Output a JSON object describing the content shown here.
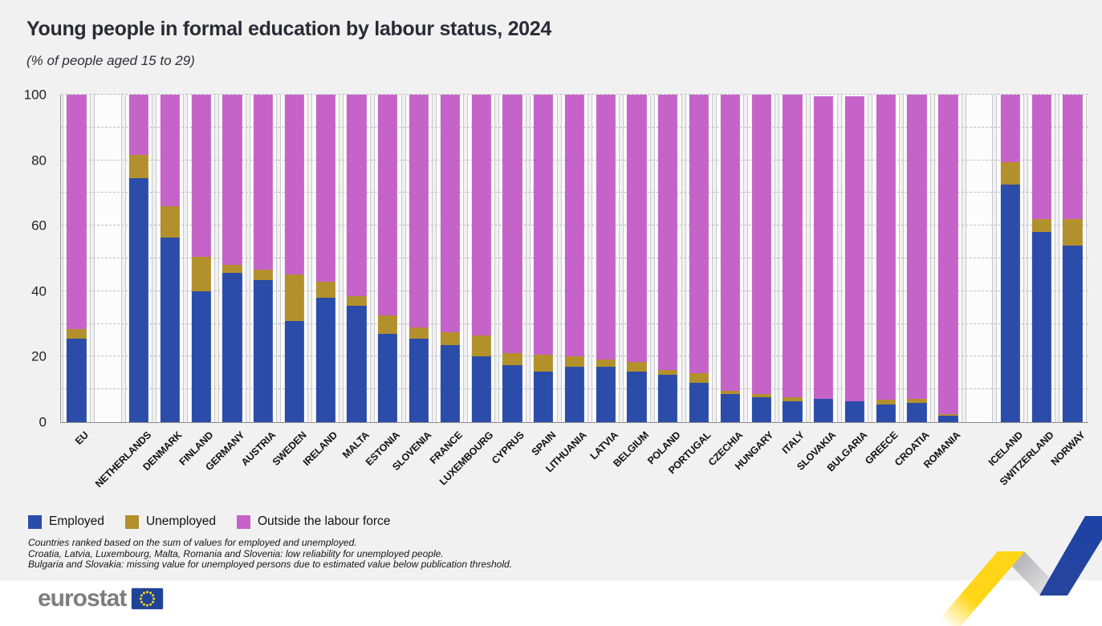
{
  "chart_data": {
    "type": "bar",
    "variant": "stacked-100",
    "title": "Young people in formal education by labour status, 2024",
    "subtitle": "(% of people aged 15 to 29)",
    "ylabel": "",
    "xlabel": "",
    "ylim": [
      0,
      100
    ],
    "yticks": [
      0,
      20,
      40,
      60,
      80,
      100
    ],
    "grid": "horizontal dashed every 10",
    "legend_position": "bottom-left",
    "series_names": [
      "Employed",
      "Unemployed",
      "Outside the labour force"
    ],
    "colors": {
      "employed": "#2b4ca8",
      "unemployed": "#b2902c",
      "outside": "#c563c9"
    },
    "bars": [
      {
        "label": "EU",
        "employed": 25.5,
        "unemployed": 3.0,
        "outside": 71.5
      },
      {
        "spacer": true
      },
      {
        "label": "NETHERLANDS",
        "employed": 74.5,
        "unemployed": 7.0,
        "outside": 18.5
      },
      {
        "label": "DENMARK",
        "employed": 56.5,
        "unemployed": 9.5,
        "outside": 34.0
      },
      {
        "label": "FINLAND",
        "employed": 40.0,
        "unemployed": 10.5,
        "outside": 49.5
      },
      {
        "label": "GERMANY",
        "employed": 45.5,
        "unemployed": 2.5,
        "outside": 52.0
      },
      {
        "label": "AUSTRIA",
        "employed": 43.5,
        "unemployed": 3.0,
        "outside": 53.5
      },
      {
        "label": "SWEDEN",
        "employed": 31.0,
        "unemployed": 14.0,
        "outside": 55.0
      },
      {
        "label": "IRELAND",
        "employed": 38.0,
        "unemployed": 5.0,
        "outside": 57.0
      },
      {
        "label": "MALTA",
        "employed": 35.5,
        "unemployed": 3.0,
        "outside": 61.5
      },
      {
        "label": "ESTONIA",
        "employed": 27.0,
        "unemployed": 5.5,
        "outside": 67.5
      },
      {
        "label": "SLOVENIA",
        "employed": 25.5,
        "unemployed": 3.5,
        "outside": 71.0
      },
      {
        "label": "FRANCE",
        "employed": 23.5,
        "unemployed": 4.0,
        "outside": 72.5
      },
      {
        "label": "LUXEMBOURG",
        "employed": 20.0,
        "unemployed": 6.5,
        "outside": 73.5
      },
      {
        "label": "CYPRUS",
        "employed": 17.5,
        "unemployed": 3.5,
        "outside": 79.0
      },
      {
        "label": "SPAIN",
        "employed": 15.5,
        "unemployed": 5.0,
        "outside": 79.5
      },
      {
        "label": "LITHUANIA",
        "employed": 17.0,
        "unemployed": 3.0,
        "outside": 80.0
      },
      {
        "label": "LATVIA",
        "employed": 17.0,
        "unemployed": 2.0,
        "outside": 81.0
      },
      {
        "label": "BELGIUM",
        "employed": 15.5,
        "unemployed": 3.0,
        "outside": 81.5
      },
      {
        "label": "POLAND",
        "employed": 14.5,
        "unemployed": 1.5,
        "outside": 84.0
      },
      {
        "label": "PORTUGAL",
        "employed": 12.0,
        "unemployed": 3.0,
        "outside": 85.0
      },
      {
        "label": "CZECHIA",
        "employed": 8.5,
        "unemployed": 1.0,
        "outside": 90.5
      },
      {
        "label": "HUNGARY",
        "employed": 7.5,
        "unemployed": 1.0,
        "outside": 91.5
      },
      {
        "label": "ITALY",
        "employed": 6.5,
        "unemployed": 1.0,
        "outside": 92.5
      },
      {
        "label": "SLOVAKIA",
        "employed": 7.0,
        "unemployed": null,
        "outside": 92.5
      },
      {
        "label": "BULGARIA",
        "employed": 6.5,
        "unemployed": null,
        "outside": 93.0
      },
      {
        "label": "GREECE",
        "employed": 5.5,
        "unemployed": 1.5,
        "outside": 93.0
      },
      {
        "label": "CROATIA",
        "employed": 6.0,
        "unemployed": 1.0,
        "outside": 93.0
      },
      {
        "label": "ROMANIA",
        "employed": 2.0,
        "unemployed": 0.5,
        "outside": 97.5
      },
      {
        "spacer": true
      },
      {
        "label": "ICELAND",
        "employed": 72.5,
        "unemployed": 7.0,
        "outside": 20.5
      },
      {
        "label": "SWITZERLAND",
        "employed": 58.0,
        "unemployed": 4.0,
        "outside": 38.0
      },
      {
        "label": "NORWAY",
        "employed": 54.0,
        "unemployed": 8.0,
        "outside": 38.0
      }
    ]
  },
  "footnotes": {
    "line1": "Countries ranked based on the sum of values for employed and unemployed.",
    "line2": "Croatia, Latvia, Luxembourg, Malta, Romania and Slovenia: low reliability for unemployed people.",
    "line3": "Bulgaria and Slovakia: missing value for unemployed persons due to estimated value below publication threshold."
  },
  "branding": {
    "logo_text": "eurostat",
    "ribbon_colors": {
      "yellow": "#ffd617",
      "gray": "#b9b9bd",
      "blue": "#1e43a5"
    },
    "flag_blue": "#1f4396",
    "star_yellow": "#ffd617"
  }
}
